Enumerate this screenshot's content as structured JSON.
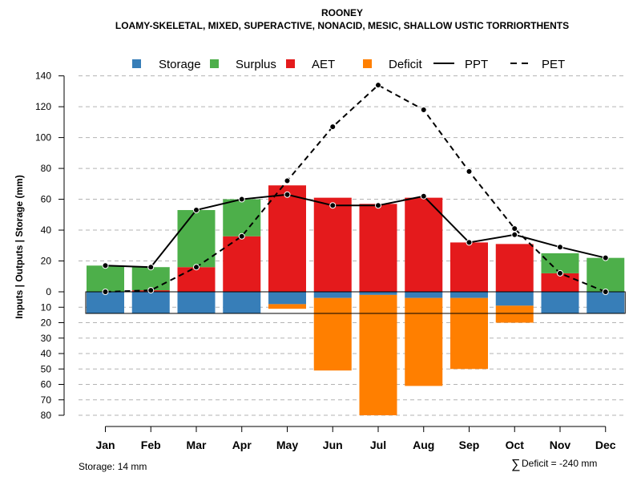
{
  "chart_data": {
    "type": "bar",
    "title": "ROONEY",
    "subtitle": "LOAMY-SKELETAL, MIXED, SUPERACTIVE, NONACID, MESIC, SHALLOW USTIC TORRIORTHENTS",
    "ylabel": "Inputs | Outputs | Storage    (mm)",
    "upper_ylim": [
      0,
      140
    ],
    "lower_ylim": [
      0,
      80
    ],
    "upper_ticks": [
      "140",
      "120",
      "100",
      "80",
      "60",
      "40",
      "20",
      "0"
    ],
    "lower_ticks": [
      "10",
      "20",
      "30",
      "40",
      "50",
      "60",
      "70",
      "80"
    ],
    "categories": [
      "Jan",
      "Feb",
      "Mar",
      "Apr",
      "May",
      "Jun",
      "Jul",
      "Aug",
      "Sep",
      "Oct",
      "Nov",
      "Dec"
    ],
    "legend": [
      {
        "key": "storage",
        "label": "Storage",
        "color": "#377EB8",
        "symbol": "square"
      },
      {
        "key": "surplus",
        "label": "Surplus",
        "color": "#4DAF4A",
        "symbol": "square"
      },
      {
        "key": "aet",
        "label": "AET",
        "color": "#E41A1C",
        "symbol": "square"
      },
      {
        "key": "deficit",
        "label": "Deficit",
        "color": "#FF7F00",
        "symbol": "square"
      },
      {
        "key": "ppt",
        "label": "PPT",
        "color": "#000000",
        "symbol": "solid-line"
      },
      {
        "key": "pet",
        "label": "PET",
        "color": "#000000",
        "symbol": "dashed-line"
      }
    ],
    "series": {
      "aet": [
        0,
        1,
        16,
        36,
        69,
        61,
        57,
        61,
        32,
        31,
        12,
        0
      ],
      "surplus": [
        17,
        15,
        37,
        24,
        0,
        0,
        0,
        0,
        0,
        0,
        13,
        22
      ],
      "storage": [
        14,
        14,
        14,
        14,
        8,
        4,
        2,
        4,
        4,
        9,
        14,
        14
      ],
      "deficit": [
        0,
        0,
        0,
        0,
        3,
        47,
        78,
        57,
        46,
        11,
        0,
        0
      ],
      "ppt": [
        17,
        16,
        53,
        60,
        63,
        56,
        56,
        62,
        32,
        37,
        29,
        22
      ],
      "pet": [
        0,
        1,
        16,
        36,
        72,
        107,
        134,
        118,
        78,
        41,
        12,
        0
      ]
    },
    "storage_capacity": 14
  },
  "footer": {
    "storage_note": "Storage: 14 mm",
    "deficit_symbol": "∑",
    "deficit_note": "Deficit = -240 mm"
  }
}
